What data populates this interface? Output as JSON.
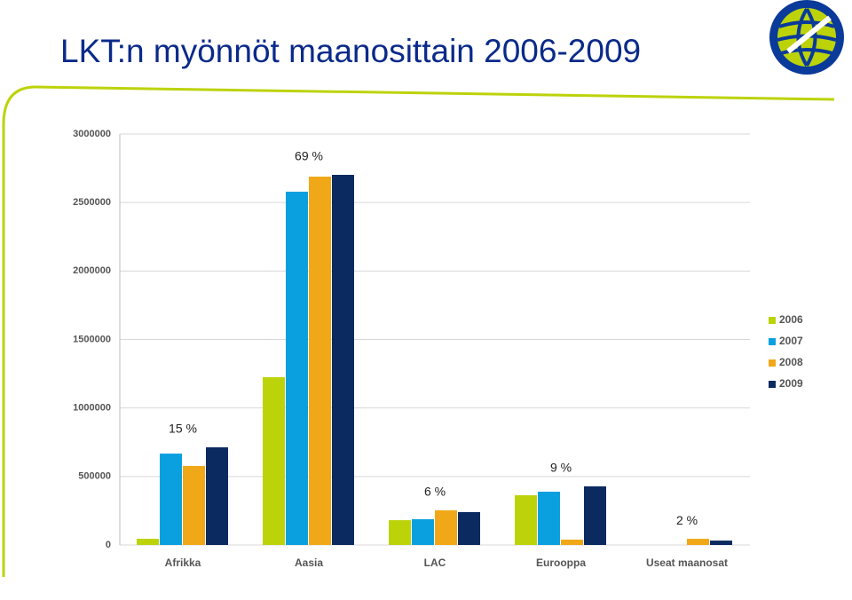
{
  "chart_data": {
    "type": "bar",
    "title": "LKT:n myönnöt maanosittain 2006-2009",
    "categories": [
      "Afrikka",
      "Aasia",
      "LAC",
      "Eurooppa",
      "Useat maanosat"
    ],
    "series": [
      {
        "name": "2006",
        "color": "#bcd30a",
        "values": [
          45000,
          1225000,
          181000,
          363000,
          null
        ]
      },
      {
        "name": "2007",
        "color": "#0aa0e0",
        "values": [
          667000,
          2579000,
          188000,
          389000,
          null
        ]
      },
      {
        "name": "2008",
        "color": "#f0a818",
        "values": [
          577000,
          2689000,
          253000,
          39000,
          45000
        ]
      },
      {
        "name": "2009",
        "color": "#0a2a60",
        "values": [
          713000,
          2702000,
          240000,
          428000,
          32000
        ]
      }
    ],
    "share_labels": [
      "15 %",
      "69 %",
      "6 %",
      "9 %",
      "2 %"
    ],
    "ylim": [
      0,
      3000000
    ],
    "yticks": [
      0,
      500000,
      1000000,
      1500000,
      2000000,
      2500000,
      3000000
    ],
    "grid": true,
    "legend": "right"
  }
}
